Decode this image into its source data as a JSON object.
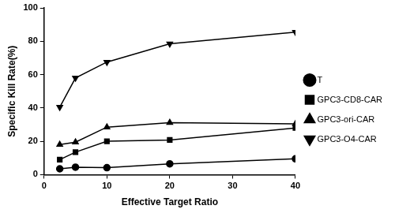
{
  "chart_data": {
    "type": "line",
    "x_label": "Effective Target Ratio",
    "y_label": "Specific Kill Rate(%)",
    "x": [
      2.5,
      5,
      10,
      20,
      40
    ],
    "series": [
      {
        "name": "T",
        "color": "#000000",
        "marker": "circle",
        "values": [
          3.5,
          4.5,
          4.2,
          6.5,
          9.5
        ]
      },
      {
        "name": "GPC3-CD8-CAR",
        "color": "#000000",
        "marker": "square",
        "values": [
          9,
          13.5,
          20,
          20.8,
          28
        ]
      },
      {
        "name": "GPC3-ori-CAR",
        "color": "#000000",
        "marker": "triangle-up",
        "values": [
          18,
          19.5,
          28.5,
          31.2,
          30.5
        ]
      },
      {
        "name": "GPC3-O4-CAR",
        "color": "#000000",
        "marker": "triangle-down",
        "values": [
          40.5,
          58,
          67.5,
          78.5,
          85.5
        ]
      }
    ],
    "xlim": [
      0,
      40
    ],
    "xticks": [
      0,
      10,
      20,
      30,
      40
    ],
    "ylim": [
      0,
      100
    ],
    "yticks": [
      0,
      20,
      40,
      60,
      80,
      100
    ],
    "grid": false,
    "legend": "right"
  }
}
